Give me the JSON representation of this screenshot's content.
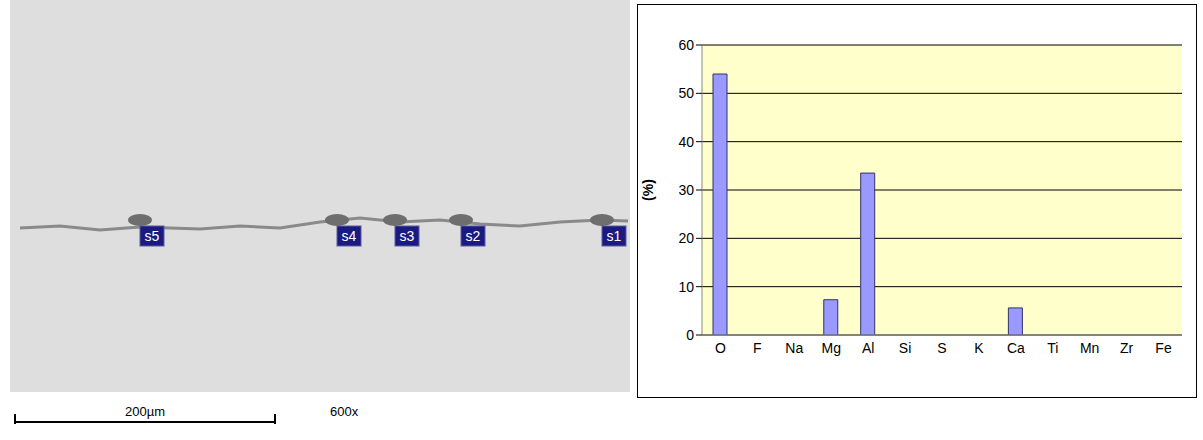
{
  "micrograph": {
    "labels": [
      "s5",
      "s4",
      "s3",
      "s2",
      "s1"
    ],
    "scale_bar": "200µm",
    "magnification": "600x"
  },
  "chart_data": {
    "type": "bar",
    "y_label": "(%)",
    "categories": [
      "O",
      "F",
      "Na",
      "Mg",
      "Al",
      "Si",
      "S",
      "K",
      "Ca",
      "Ti",
      "Mn",
      "Zr",
      "Fe"
    ],
    "values": [
      54,
      0,
      0,
      7.3,
      33.5,
      0,
      0,
      0,
      5.6,
      0,
      0,
      0,
      0
    ],
    "color": "#9999ff",
    "ylim": [
      0,
      60
    ],
    "yticks": [
      0,
      10,
      20,
      30,
      40,
      50,
      60
    ],
    "grid": true
  }
}
